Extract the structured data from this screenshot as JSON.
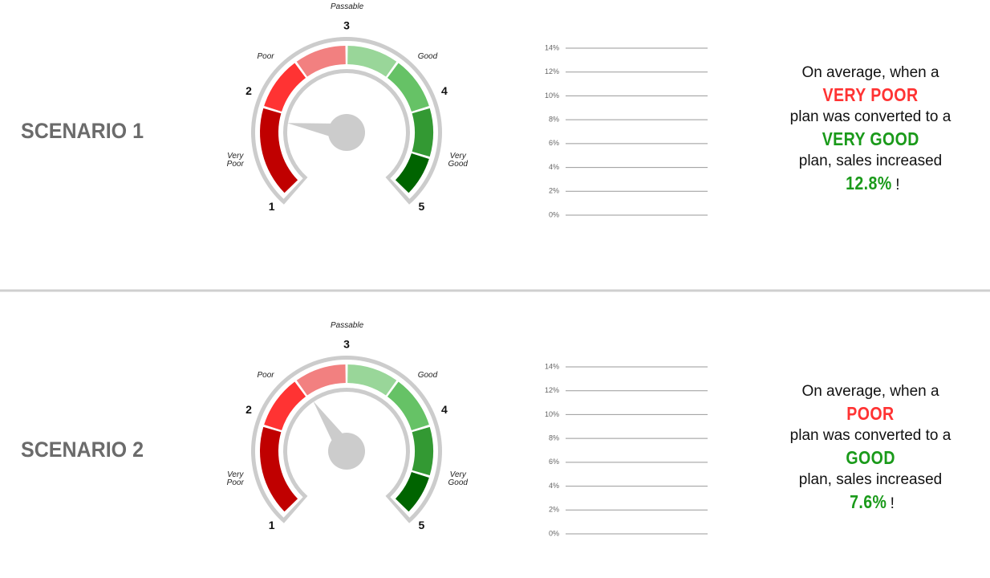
{
  "scenarios": [
    {
      "title": "SCENARIO 1",
      "gauge": {
        "zones": [
          "Very Poor",
          "Poor",
          "Passable",
          "Good",
          "Very Good"
        ],
        "ticks": [
          1,
          2,
          3,
          4,
          5
        ],
        "value": 1.8
      },
      "chart": {
        "ylim": [
          0,
          14
        ],
        "yticks": [
          {
            "value": 0,
            "label": "0%"
          },
          {
            "value": 2,
            "label": "2%"
          },
          {
            "value": 4,
            "label": "4%"
          },
          {
            "value": 6,
            "label": "6%"
          },
          {
            "value": 8,
            "label": "8%"
          },
          {
            "value": 10,
            "label": "10%"
          },
          {
            "value": 12,
            "label": "12%"
          },
          {
            "value": 14,
            "label": "14%"
          }
        ]
      },
      "summary": {
        "intro": "On average, when a",
        "from": "VERY POOR",
        "middle": "plan was converted to a",
        "to": "VERY GOOD",
        "outro": "plan, sales increased",
        "result": "12.8%",
        "end": "!"
      }
    },
    {
      "title": "SCENARIO 2",
      "gauge": {
        "zones": [
          "Very Poor",
          "Poor",
          "Passable",
          "Good",
          "Very Good"
        ],
        "ticks": [
          1,
          2,
          3,
          4,
          5
        ],
        "value": 2.5
      },
      "chart": {
        "ylim": [
          0,
          14
        ],
        "yticks": [
          {
            "value": 0,
            "label": "0%"
          },
          {
            "value": 2,
            "label": "2%"
          },
          {
            "value": 4,
            "label": "4%"
          },
          {
            "value": 6,
            "label": "6%"
          },
          {
            "value": 8,
            "label": "8%"
          },
          {
            "value": 10,
            "label": "10%"
          },
          {
            "value": 12,
            "label": "12%"
          },
          {
            "value": 14,
            "label": "14%"
          }
        ]
      },
      "summary": {
        "intro": "On average, when a",
        "from": "POOR",
        "middle": "plan was converted to a",
        "to": "GOOD",
        "outro": "plan, sales increased",
        "result": "7.6%",
        "end": "!"
      }
    }
  ]
}
